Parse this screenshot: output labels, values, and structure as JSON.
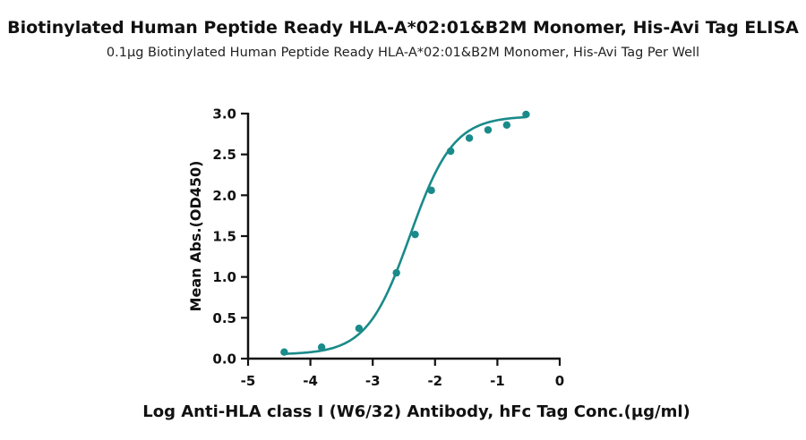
{
  "chart_data": {
    "type": "scatter",
    "title": "Biotinylated Human Peptide Ready HLA-A*02:01&B2M Monomer, His-Avi Tag ELISA",
    "subtitle": "0.1μg Biotinylated Human Peptide Ready HLA-A*02:01&B2M Monomer, His-Avi Tag Per Well",
    "xlabel": "Log Anti-HLA class I (W6/32) Antibody, hFc Tag Conc.(μg/ml)",
    "ylabel": "Mean Abs.(OD450)",
    "xlim": [
      -5,
      0
    ],
    "ylim": [
      0,
      3.0
    ],
    "x_ticks": [
      "-5",
      "-4",
      "-3",
      "-2",
      "-1",
      "0"
    ],
    "y_ticks": [
      "0.0",
      "0.5",
      "1.0",
      "1.5",
      "2.0",
      "2.5",
      "3.0"
    ],
    "grid": false,
    "color": "#1a8a8a",
    "series": [
      {
        "x": [
          -4.42,
          -3.82,
          -3.22,
          -2.62,
          -2.32,
          -2.06,
          -1.75,
          -1.45,
          -1.15,
          -0.85,
          -0.54
        ],
        "values": [
          0.08,
          0.14,
          0.37,
          1.05,
          1.52,
          2.06,
          2.54,
          2.7,
          2.8,
          2.86,
          2.99
        ]
      }
    ],
    "fit_curve": {
      "type": "4PL",
      "bottom": 0.05,
      "top": 2.97,
      "log_ec50": -2.4,
      "hill_slope": 1.25
    }
  }
}
